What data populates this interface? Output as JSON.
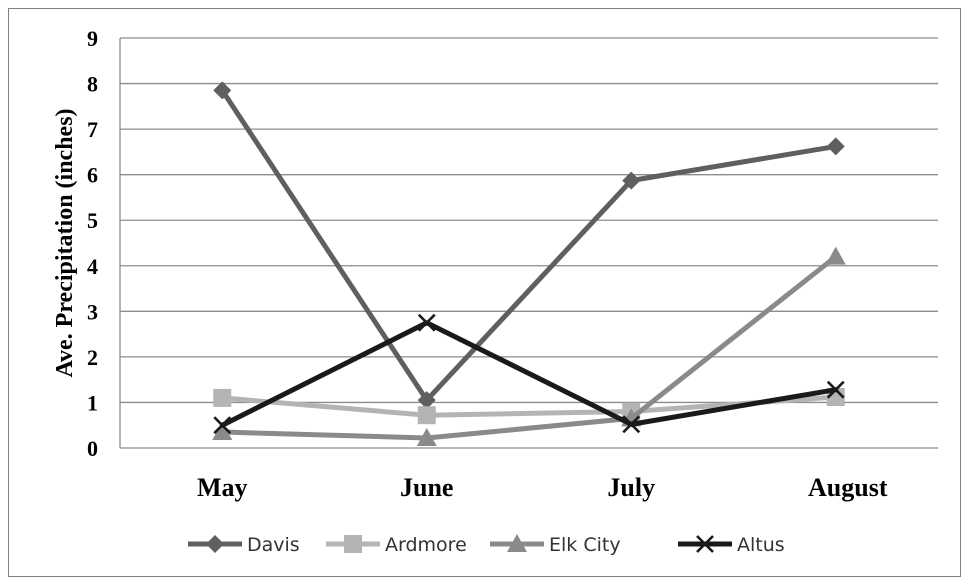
{
  "chart_data": {
    "type": "line",
    "title": "",
    "xlabel": "",
    "ylabel": "Ave. Precipitation (inches)",
    "categories": [
      "May",
      "June",
      "July",
      "August"
    ],
    "ylim": [
      0,
      9
    ],
    "yticks": [
      "0",
      "1",
      "2",
      "3",
      "4",
      "5",
      "6",
      "7",
      "8",
      "9"
    ],
    "grid": "horizontal",
    "legend_position": "bottom",
    "series": [
      {
        "name": "Davis",
        "values": [
          7.85,
          1.05,
          5.87,
          6.62
        ],
        "color": "#5f5f5f",
        "marker": "diamond"
      },
      {
        "name": "Ardmore",
        "values": [
          1.1,
          0.72,
          0.8,
          1.12
        ],
        "color": "#b4b4b4",
        "marker": "square"
      },
      {
        "name": "Elk City",
        "values": [
          0.35,
          0.22,
          0.65,
          4.2
        ],
        "color": "#8a8a8a",
        "marker": "triangle"
      },
      {
        "name": "Altus",
        "values": [
          0.5,
          2.75,
          0.52,
          1.28
        ],
        "color": "#1a1a1a",
        "marker": "x"
      }
    ]
  }
}
